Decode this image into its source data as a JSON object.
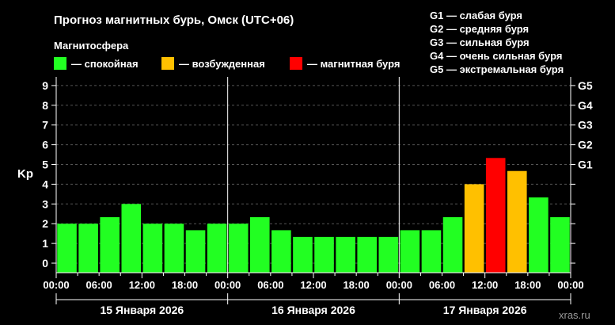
{
  "page": {
    "title": "Прогноз магнитных бурь, Омск (UTC+06)",
    "legend_heading": "Магнитосфера",
    "watermark": "xras.ru"
  },
  "colors": {
    "background": "#000000",
    "quiet": "#22ff22",
    "excited": "#ffc000",
    "storm": "#ff0000",
    "grid": "#555555",
    "axis": "#ffffff"
  },
  "legend": [
    {
      "label": "— спокойная",
      "color_key": "quiet"
    },
    {
      "label": "— возбужденная",
      "color_key": "excited"
    },
    {
      "label": "— магнитная буря",
      "color_key": "storm"
    }
  ],
  "g_legend": [
    "G1 — слабая буря",
    "G2 — средняя буря",
    "G3 — сильная буря",
    "G4 — очень сильная буря",
    "G5 — экстремальная буря"
  ],
  "chart_data": {
    "type": "bar",
    "ylabel": "Kp",
    "ylim": [
      0,
      9
    ],
    "y_ticks": [
      "0",
      "1",
      "2",
      "3",
      "4",
      "5",
      "6",
      "7",
      "8",
      "9"
    ],
    "right_ticks": [
      {
        "value": 5,
        "label": "G1"
      },
      {
        "value": 6,
        "label": "G2"
      },
      {
        "value": 7,
        "label": "G3"
      },
      {
        "value": 8,
        "label": "G4"
      },
      {
        "value": 9,
        "label": "G5"
      }
    ],
    "x_tick_labels": [
      "00:00",
      "06:00",
      "12:00",
      "18:00",
      "00:00",
      "06:00",
      "12:00",
      "18:00",
      "00:00",
      "06:00",
      "12:00",
      "18:00",
      "00:00"
    ],
    "days": [
      "15 Января 2026",
      "16 Января 2026",
      "17 Января 2026"
    ],
    "grid": true,
    "values": [
      2.0,
      2.0,
      2.33,
      3.0,
      2.0,
      2.0,
      1.67,
      2.0,
      2.0,
      2.33,
      1.67,
      1.33,
      1.33,
      1.33,
      1.33,
      1.33,
      1.67,
      1.67,
      2.33,
      4.0,
      5.33,
      4.67,
      3.33,
      2.33
    ],
    "levels": [
      "quiet",
      "quiet",
      "quiet",
      "quiet",
      "quiet",
      "quiet",
      "quiet",
      "quiet",
      "quiet",
      "quiet",
      "quiet",
      "quiet",
      "quiet",
      "quiet",
      "quiet",
      "quiet",
      "quiet",
      "quiet",
      "quiet",
      "excited",
      "storm",
      "excited",
      "quiet",
      "quiet"
    ]
  }
}
